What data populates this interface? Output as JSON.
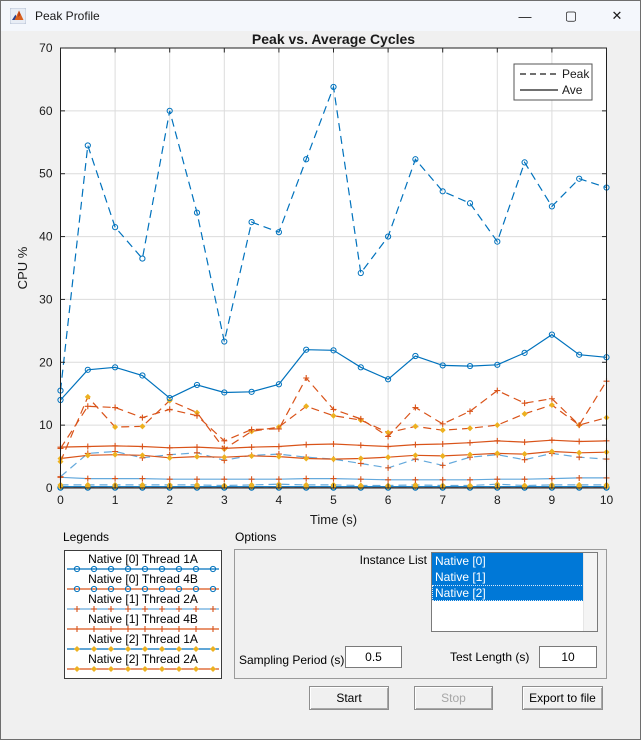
{
  "window": {
    "title": "Peak Profile"
  },
  "titlebar": {
    "minimize_glyph": "—",
    "maximize_glyph": "▢",
    "close_glyph": "✕"
  },
  "colors": {
    "blue": "#0072BD",
    "orange": "#D95319",
    "yellow": "#EDB120",
    "lightblue": "#64A9DC",
    "selection": "#0078d7",
    "figure_bg": "#f0f0f0",
    "grid": "#dcdcdc",
    "axis": "#1f1f1f"
  },
  "chart_data": {
    "type": "line",
    "title": "Peak vs. Average Cycles",
    "xlabel": "Time (s)",
    "ylabel": "CPU %",
    "xlim": [
      0,
      10
    ],
    "ylim": [
      0,
      70
    ],
    "xticks": [
      0,
      1,
      2,
      3,
      4,
      5,
      6,
      7,
      8,
      9,
      10
    ],
    "yticks": [
      0,
      10,
      20,
      30,
      40,
      50,
      60,
      70
    ],
    "grid": true,
    "legend": {
      "position": "top-right",
      "entries": [
        {
          "label": "Peak",
          "style": "dashed"
        },
        {
          "label": "Ave",
          "style": "solid"
        }
      ]
    },
    "x": [
      0,
      0.5,
      1,
      1.5,
      2,
      2.5,
      3,
      3.5,
      4,
      4.5,
      5,
      5.5,
      6,
      6.5,
      7,
      7.5,
      8,
      8.5,
      9,
      9.5,
      10
    ],
    "series": [
      {
        "id": "native0-thread4B-ave",
        "thread": "Native [0] Thread 4B",
        "role": "ave",
        "color": "#D95319",
        "style": "solid",
        "marker": "circle",
        "marker_color": "#0072BD",
        "values": [
          0.05,
          0.05,
          0.05,
          0.05,
          0.05,
          0.05,
          0.05,
          0.05,
          0.05,
          0.05,
          0.05,
          0.05,
          0.05,
          0.05,
          0.05,
          0.05,
          0.05,
          0.05,
          0.05,
          0.05,
          0.05
        ]
      },
      {
        "id": "native0-thread4B-peak",
        "thread": "Native [0] Thread 4B",
        "role": "peak",
        "color": "#D95319",
        "style": "dashed",
        "marker": "circle",
        "marker_color": "#0072BD",
        "values": [
          0.1,
          0.1,
          0.1,
          0.1,
          0.1,
          0.1,
          0.1,
          0.1,
          0.1,
          0.1,
          0.1,
          0.1,
          0.1,
          0.1,
          0.1,
          0.1,
          0.1,
          0.1,
          0.1,
          0.1,
          0.1
        ]
      },
      {
        "id": "native2-thread1A-ave",
        "thread": "Native [2] Thread 1A",
        "role": "ave",
        "color": "#0072BD",
        "style": "solid",
        "marker": "diamond",
        "marker_color": "#EDB120",
        "values": [
          0.2,
          0.2,
          0.2,
          0.2,
          0.2,
          0.2,
          0.2,
          0.2,
          0.2,
          0.2,
          0.2,
          0.2,
          0.2,
          0.2,
          0.2,
          0.2,
          0.2,
          0.2,
          0.2,
          0.2,
          0.2
        ]
      },
      {
        "id": "native2-thread1A-peak",
        "thread": "Native [2] Thread 1A",
        "role": "peak",
        "color": "#64A9DC",
        "style": "dashed",
        "marker": "diamond",
        "marker_color": "#EDB120",
        "values": [
          0.5,
          0.5,
          0.5,
          0.5,
          0.5,
          0.5,
          0.4,
          0.5,
          0.6,
          0.5,
          0.5,
          0.4,
          0.4,
          0.5,
          0.4,
          0.4,
          0.6,
          0.4,
          0.5,
          0.5,
          0.5
        ]
      },
      {
        "id": "native1-thread2A-ave",
        "thread": "Native [1] Thread 2A",
        "role": "ave",
        "color": "#64A9DC",
        "style": "solid",
        "marker": "plus",
        "marker_color": "#D95319",
        "values": [
          1.7,
          1.5,
          1.5,
          1.5,
          1.4,
          1.4,
          1.4,
          1.4,
          1.4,
          1.5,
          1.5,
          1.4,
          1.3,
          1.3,
          1.3,
          1.3,
          1.4,
          1.4,
          1.5,
          1.6,
          1.6
        ]
      },
      {
        "id": "native1-thread2A-peak",
        "thread": "Native [1] Thread 2A",
        "role": "peak",
        "color": "#64A9DC",
        "style": "dashed",
        "marker": "plus",
        "marker_color": "#D95319",
        "values": [
          1.8,
          5.5,
          5.8,
          4.8,
          5.3,
          5.6,
          4.4,
          5.2,
          5.4,
          4.9,
          4.6,
          3.9,
          3.2,
          4.6,
          3.6,
          4.9,
          5.3,
          4.5,
          5.5,
          4.9,
          4.6
        ]
      },
      {
        "id": "native2-thread2A-ave",
        "thread": "Native [2] Thread 2A",
        "role": "ave",
        "color": "#D95319",
        "style": "solid",
        "marker": "diamond",
        "marker_color": "#EDB120",
        "values": [
          4.7,
          5.2,
          5.3,
          5.2,
          4.8,
          5.0,
          4.9,
          5.1,
          5.0,
          4.7,
          4.6,
          4.7,
          4.9,
          5.2,
          5.1,
          5.3,
          5.5,
          5.4,
          5.8,
          5.6,
          5.7
        ]
      },
      {
        "id": "native2-thread2A-peak",
        "thread": "Native [2] Thread 2A",
        "role": "peak",
        "color": "#D95319",
        "style": "dashed",
        "marker": "diamond",
        "marker_color": "#EDB120",
        "values": [
          4.2,
          14.5,
          9.7,
          9.8,
          13.9,
          12.0,
          6.2,
          9.0,
          9.7,
          13.0,
          11.5,
          10.8,
          8.8,
          9.8,
          9.2,
          9.5,
          10.0,
          11.8,
          13.2,
          10.0,
          11.2
        ]
      },
      {
        "id": "native1-thread4B-ave",
        "thread": "Native [1] Thread 4B",
        "role": "ave",
        "color": "#D95319",
        "style": "solid",
        "marker": "plus",
        "marker_color": "#D95319",
        "values": [
          6.5,
          6.6,
          6.7,
          6.6,
          6.4,
          6.5,
          6.3,
          6.5,
          6.6,
          6.9,
          7.0,
          6.8,
          6.6,
          6.9,
          7.0,
          7.2,
          7.5,
          7.3,
          7.6,
          7.4,
          7.5
        ]
      },
      {
        "id": "native1-thread4B-peak",
        "thread": "Native [1] Thread 4B",
        "role": "peak",
        "color": "#D95319",
        "style": "dashed",
        "marker": "plus",
        "marker_color": "#D95319",
        "values": [
          6.3,
          13.0,
          12.8,
          11.2,
          12.5,
          11.5,
          7.5,
          9.3,
          9.4,
          17.5,
          12.5,
          11.0,
          8.2,
          12.8,
          10.2,
          12.2,
          15.5,
          13.5,
          14.2,
          10.0,
          17.0
        ]
      },
      {
        "id": "native0-thread1A-ave",
        "thread": "Native [0] Thread 1A",
        "role": "ave",
        "color": "#0072BD",
        "style": "solid",
        "marker": "circle",
        "marker_color": "#0072BD",
        "values": [
          14.0,
          18.8,
          19.2,
          17.9,
          14.3,
          16.4,
          15.2,
          15.3,
          16.5,
          22.0,
          21.9,
          19.2,
          17.3,
          21.0,
          19.5,
          19.4,
          19.6,
          21.5,
          24.4,
          21.2,
          20.8
        ]
      },
      {
        "id": "native0-thread1A-peak",
        "thread": "Native [0] Thread 1A",
        "role": "peak",
        "color": "#0072BD",
        "style": "dashed",
        "marker": "circle",
        "marker_color": "#0072BD",
        "values": [
          15.5,
          54.5,
          41.5,
          36.5,
          60.0,
          43.8,
          23.3,
          42.3,
          40.7,
          52.3,
          63.8,
          34.2,
          40.0,
          52.3,
          47.2,
          45.3,
          39.2,
          51.8,
          44.8,
          49.2,
          47.8
        ]
      }
    ]
  },
  "legends_panel": {
    "label": "Legends",
    "items": [
      {
        "label": "Native [0] Thread 1A",
        "line_color": "#0072BD",
        "marker": "circle",
        "marker_color": "#0072BD"
      },
      {
        "label": "Native [0] Thread 4B",
        "line_color": "#D95319",
        "marker": "circle",
        "marker_color": "#0072BD"
      },
      {
        "label": "Native [1] Thread 2A",
        "line_color": "#64A9DC",
        "marker": "plus",
        "marker_color": "#D95319"
      },
      {
        "label": "Native [1] Thread 4B",
        "line_color": "#D95319",
        "marker": "plus",
        "marker_color": "#D95319"
      },
      {
        "label": "Native [2] Thread 1A",
        "line_color": "#0072BD",
        "marker": "diamond",
        "marker_color": "#EDB120"
      },
      {
        "label": "Native [2] Thread 2A",
        "line_color": "#D95319",
        "marker": "diamond",
        "marker_color": "#EDB120"
      }
    ]
  },
  "options_panel": {
    "label": "Options",
    "instance_list_label": "Instance List",
    "instances": [
      {
        "label": "Native [0]",
        "selected": true
      },
      {
        "label": "Native [1]",
        "selected": true
      },
      {
        "label": "Native [2]",
        "selected": true
      }
    ],
    "sampling_label": "Sampling Period (s)",
    "sampling_value": "0.5",
    "test_length_label": "Test Length (s)",
    "test_length_value": "10"
  },
  "buttons": {
    "start_label": "Start",
    "stop_label": "Stop",
    "export_label": "Export to file",
    "stop_enabled": false
  }
}
